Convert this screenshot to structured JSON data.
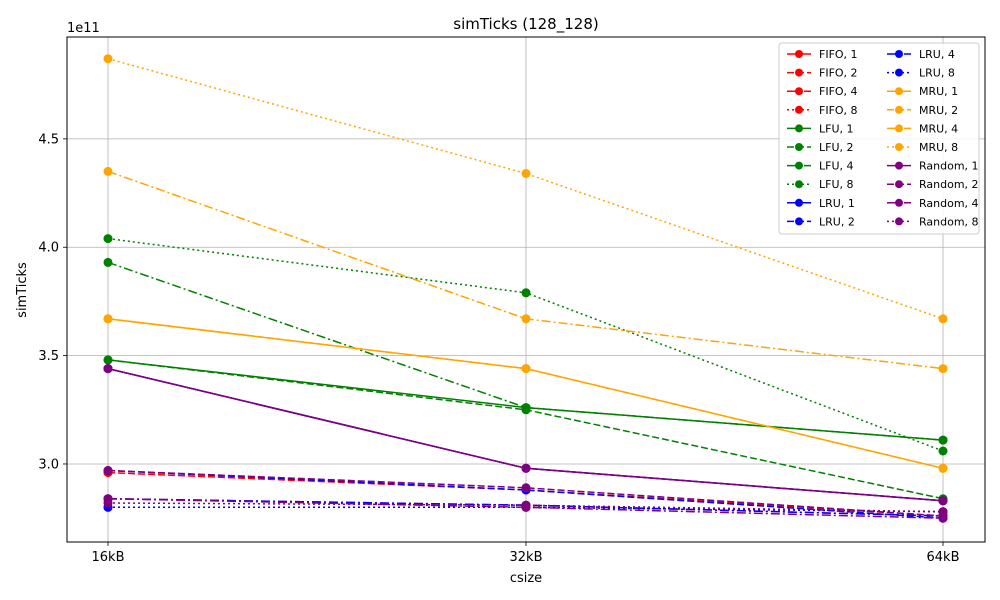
{
  "chart_data": {
    "type": "line",
    "title": "simTicks (128_128)",
    "xlabel": "csize",
    "ylabel": "simTicks",
    "offset_text": "1e11",
    "categories": [
      "16kB",
      "32kB",
      "64kB"
    ],
    "ylim": [
      2.64,
      4.97
    ],
    "yticks": [
      3.0,
      3.5,
      4.0,
      4.5
    ],
    "ytick_labels": [
      "3.0",
      "3.5",
      "4.0",
      "4.5"
    ],
    "grid": true,
    "legend": {
      "placement": "top-right",
      "columns": 2
    },
    "series": [
      {
        "name": "FIFO, 1",
        "color": "#ff0000",
        "dash": "solid",
        "values": [
          3.44,
          2.98,
          2.83
        ]
      },
      {
        "name": "FIFO, 2",
        "color": "#ff0000",
        "dash": "dashed",
        "values": [
          2.96,
          2.88,
          2.76
        ]
      },
      {
        "name": "FIFO, 4",
        "color": "#ff0000",
        "dash": "dashdot",
        "values": [
          2.84,
          2.81,
          2.76
        ]
      },
      {
        "name": "FIFO, 8",
        "color": "#ff0000",
        "dash": "dotted",
        "values": [
          2.8,
          2.8,
          2.78
        ]
      },
      {
        "name": "LFU, 1",
        "color": "#008000",
        "dash": "solid",
        "values": [
          3.48,
          3.26,
          3.11
        ]
      },
      {
        "name": "LFU, 2",
        "color": "#008000",
        "dash": "dashed",
        "values": [
          3.48,
          3.25,
          2.84
        ]
      },
      {
        "name": "LFU, 4",
        "color": "#008000",
        "dash": "dashdot",
        "values": [
          3.93,
          3.26,
          3.11
        ]
      },
      {
        "name": "LFU, 8",
        "color": "#008000",
        "dash": "dotted",
        "values": [
          4.04,
          3.79,
          3.06
        ]
      },
      {
        "name": "LRU, 1",
        "color": "#0000ff",
        "dash": "solid",
        "values": [
          3.44,
          2.98,
          2.83
        ]
      },
      {
        "name": "LRU, 2",
        "color": "#0000ff",
        "dash": "dashed",
        "values": [
          2.97,
          2.88,
          2.75
        ]
      },
      {
        "name": "LRU, 4",
        "color": "#0000ff",
        "dash": "dashdot",
        "values": [
          2.84,
          2.81,
          2.76
        ]
      },
      {
        "name": "LRU, 8",
        "color": "#0000ff",
        "dash": "dotted",
        "values": [
          2.8,
          2.8,
          2.78
        ]
      },
      {
        "name": "MRU, 1",
        "color": "#ffa500",
        "dash": "solid",
        "values": [
          3.67,
          3.44,
          2.98
        ]
      },
      {
        "name": "MRU, 2",
        "color": "#ffa500",
        "dash": "dashed",
        "values": [
          3.67,
          3.44,
          2.98
        ]
      },
      {
        "name": "MRU, 4",
        "color": "#ffa500",
        "dash": "dashdot",
        "values": [
          4.35,
          3.67,
          3.44
        ]
      },
      {
        "name": "MRU, 8",
        "color": "#ffa500",
        "dash": "dotted",
        "values": [
          4.87,
          4.34,
          3.67
        ]
      },
      {
        "name": "Random, 1",
        "color": "#800080",
        "dash": "solid",
        "values": [
          3.44,
          2.98,
          2.83
        ]
      },
      {
        "name": "Random, 2",
        "color": "#800080",
        "dash": "dashed",
        "values": [
          2.97,
          2.89,
          2.76
        ]
      },
      {
        "name": "Random, 4",
        "color": "#800080",
        "dash": "dashdot",
        "values": [
          2.84,
          2.8,
          2.75
        ]
      },
      {
        "name": "Random, 8",
        "color": "#800080",
        "dash": "dotted",
        "values": [
          2.82,
          2.81,
          2.78
        ]
      }
    ]
  }
}
